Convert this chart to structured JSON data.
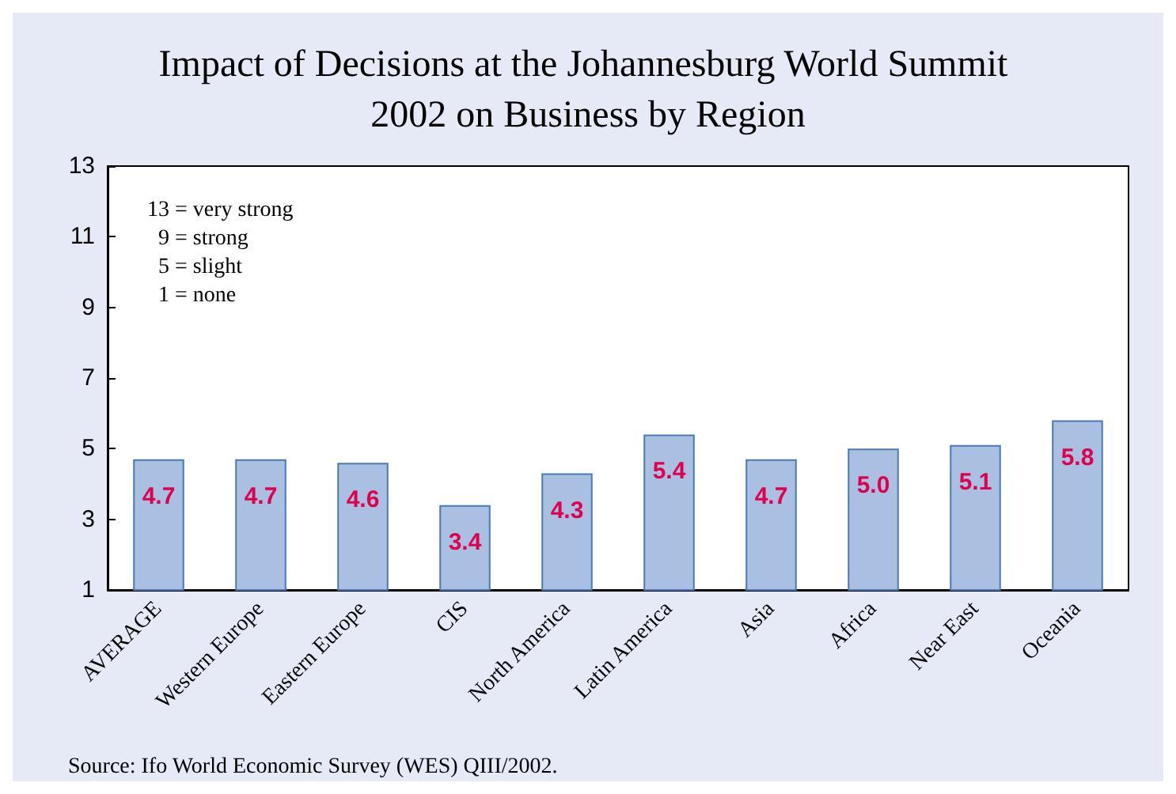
{
  "chart_data": {
    "type": "bar",
    "title": "Impact of Decisions at the Johannesburg World Summit 2002 on Business by Region",
    "categories": [
      "AVERAGE",
      "Western Europe",
      "Eastern Europe",
      "CIS",
      "North America",
      "Latin America",
      "Asia",
      "Africa",
      "Near East",
      "Oceania"
    ],
    "values": [
      4.7,
      4.7,
      4.6,
      3.4,
      4.3,
      5.4,
      4.7,
      5.0,
      5.1,
      5.8
    ],
    "color": "#a9c0e2",
    "value_labels": [
      "4.7",
      "4.7",
      "4.6",
      "3.4",
      "4.3",
      "5.4",
      "4.7",
      "5.0",
      "5.1",
      "5.8"
    ],
    "ylim": [
      1,
      13
    ],
    "yticks": [
      1,
      3,
      5,
      7,
      9,
      11,
      13
    ],
    "grid": false,
    "annotations": [
      "13 = very strong",
      "  9 = strong",
      "  5 = slight",
      "  1 = none",
      "Source: Ifo World Economic Survey (WES) QIII/2002."
    ]
  }
}
